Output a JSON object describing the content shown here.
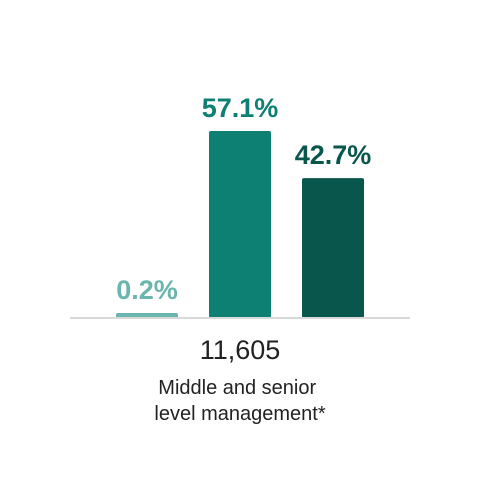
{
  "chart_data": {
    "type": "bar",
    "categories": [
      "Middle and senior level management*"
    ],
    "category_lines": [
      "Middle and senior",
      "level management*"
    ],
    "total": "11,605",
    "ylim": [
      0,
      60
    ],
    "grid": false,
    "legend": "none",
    "series": [
      {
        "label": "0.2%",
        "values": [
          0.2
        ],
        "color": "#6ab5ad"
      },
      {
        "label": "57.1%",
        "values": [
          57.1
        ],
        "color": "#0e8073"
      },
      {
        "label": "42.7%",
        "values": [
          42.7
        ],
        "color": "#09564c"
      }
    ],
    "axis_color": "#d9d9d9"
  }
}
